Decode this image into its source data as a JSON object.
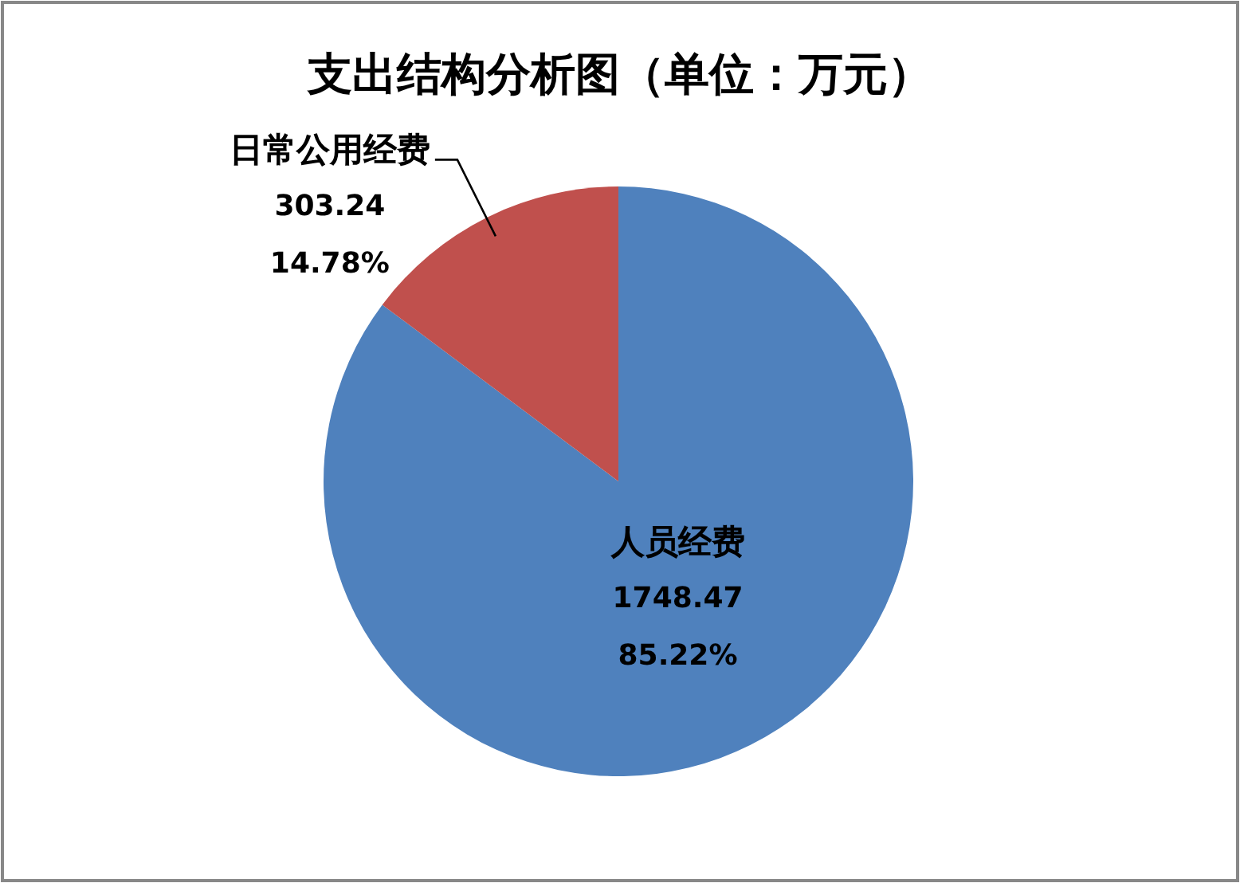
{
  "chart_data": {
    "type": "pie",
    "title": "支出结构分析图（单位：万元）",
    "categories": [
      "人员经费",
      "日常公用经费"
    ],
    "values": [
      1748.47,
      303.24
    ],
    "colors": [
      "#4f81bd",
      "#c0504d"
    ],
    "value_labels": [
      "1748.47\n85.22%",
      "303.24\n14.78%"
    ],
    "legend": false
  }
}
